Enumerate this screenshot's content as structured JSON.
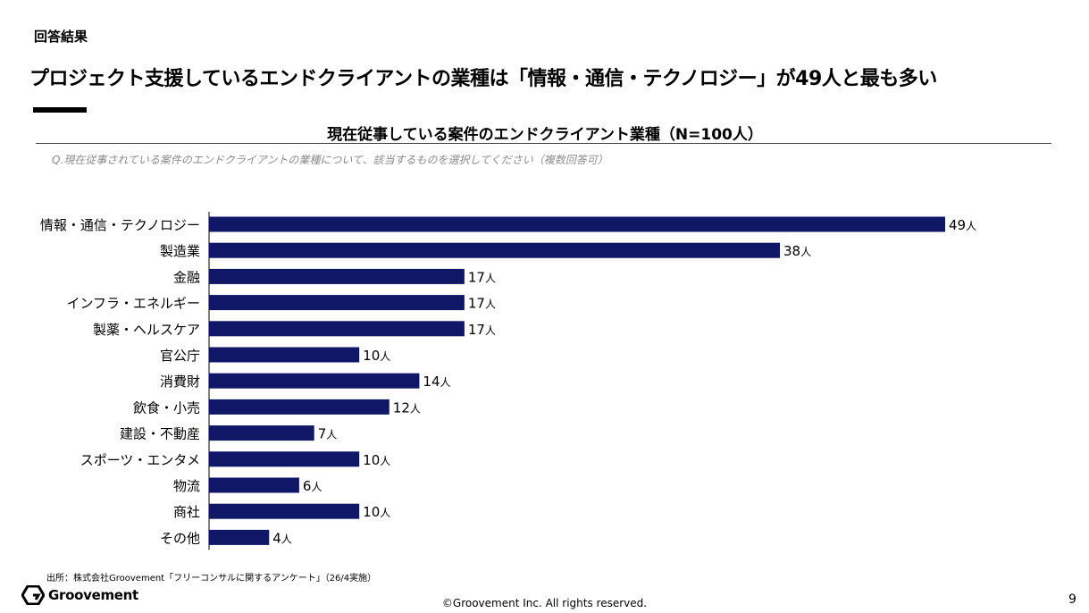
{
  "section_label": "回答結果",
  "headline": "プロジェクト支援しているエンドクライアントの業種は「情報・通信・テクノロジー」が49人と最も多い",
  "question": "Q.現在従事されている案件のエンドクライアントの業種について、該当するものを選択してください（複数回答可）",
  "source": "出所：株式会社Groovement「フリーコンサルに関するアンケート」（26/4実施）",
  "logo_text": "Groovement",
  "copyright": "©Groovement Inc. All rights reserved.",
  "page_number": "9",
  "colors": {
    "bar": "#0f1766",
    "text": "#000000",
    "question": "#8a8a8a"
  },
  "chart_data": {
    "type": "bar",
    "orientation": "horizontal",
    "title": "現在従事している案件のエンドクライアント業種（N=100人）",
    "value_suffix": "人",
    "categories": [
      "情報・通信・テクノロジー",
      "製造業",
      "金融",
      "インフラ・エネルギー",
      "製薬・ヘルスケア",
      "官公庁",
      "消費財",
      "飲食・小売",
      "建設・不動産",
      "スポーツ・エンタメ",
      "物流",
      "商社",
      "その他"
    ],
    "values": [
      49,
      38,
      17,
      17,
      17,
      10,
      14,
      12,
      7,
      10,
      6,
      10,
      4
    ],
    "xlim": [
      0,
      49
    ],
    "grid": false,
    "legend": "none"
  }
}
